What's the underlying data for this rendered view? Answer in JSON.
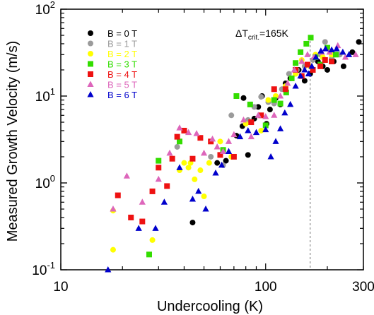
{
  "chart_data": {
    "type": "scatter",
    "xlabel": "Undercooling (K)",
    "ylabel": "Measured Growth Velocity (m/s)",
    "xscale": "log",
    "yscale": "log",
    "xlim": [
      10,
      300
    ],
    "ylim": [
      0.1,
      100
    ],
    "xticks": [
      {
        "value": 10,
        "label": "10"
      },
      {
        "value": 100,
        "label": "100"
      },
      {
        "value": 300,
        "label": "300"
      }
    ],
    "yticks": [
      {
        "value": 0.1,
        "base": "10",
        "exp": "-1"
      },
      {
        "value": 1,
        "base": "10",
        "exp": "0"
      },
      {
        "value": 10,
        "base": "10",
        "exp": "1"
      },
      {
        "value": 100,
        "base": "10",
        "exp": "2"
      }
    ],
    "legend_position": "top-left",
    "annotation": {
      "delta": "ΔT",
      "subscript": "crit.",
      "value": "=165K",
      "x": 165
    },
    "series": [
      {
        "name": "B = 0 T",
        "color": "#000000",
        "marker": "circle",
        "points": [
          [
            44,
            0.35
          ],
          [
            58,
            1.7
          ],
          [
            64,
            1.8
          ],
          [
            72,
            3.5
          ],
          [
            77,
            4.5
          ],
          [
            78,
            9.5
          ],
          [
            82,
            2.1
          ],
          [
            88,
            5.5
          ],
          [
            92,
            7.5
          ],
          [
            96,
            10
          ],
          [
            101,
            4.8
          ],
          [
            105,
            7
          ],
          [
            112,
            9.5
          ],
          [
            118,
            8
          ],
          [
            125,
            14
          ],
          [
            132,
            16
          ],
          [
            145,
            20
          ],
          [
            155,
            15
          ],
          [
            165,
            18
          ],
          [
            180,
            25
          ],
          [
            190,
            22
          ],
          [
            200,
            20
          ],
          [
            215,
            25
          ],
          [
            240,
            22
          ],
          [
            265,
            32
          ],
          [
            285,
            42
          ]
        ]
      },
      {
        "name": "B = 1 T",
        "color": "#9b9b9b",
        "marker": "circle",
        "points": [
          [
            37,
            2.6
          ],
          [
            54,
            2
          ],
          [
            62,
            1.6
          ],
          [
            68,
            6
          ],
          [
            82,
            5.3
          ],
          [
            88,
            7.5
          ],
          [
            95,
            9.8
          ],
          [
            103,
            8.5
          ],
          [
            110,
            8.2
          ],
          [
            120,
            12
          ],
          [
            130,
            18
          ],
          [
            142,
            20
          ],
          [
            155,
            22
          ],
          [
            170,
            26
          ],
          [
            185,
            30
          ],
          [
            195,
            42
          ],
          [
            210,
            27
          ],
          [
            230,
            30
          ]
        ]
      },
      {
        "name": "B = 2 T",
        "color": "#ffff00",
        "marker": "circle",
        "points": [
          [
            18,
            0.17
          ],
          [
            18,
            0.48
          ],
          [
            28,
            0.22
          ],
          [
            38,
            1.4
          ],
          [
            40,
            1.7
          ],
          [
            42,
            1.5
          ],
          [
            43,
            1.7
          ],
          [
            45,
            1.1
          ],
          [
            48,
            1.4
          ],
          [
            50,
            0.7
          ],
          [
            53,
            1.7
          ],
          [
            60,
            3
          ],
          [
            68,
            2
          ],
          [
            80,
            4.8
          ],
          [
            95,
            4
          ],
          [
            103,
            9
          ],
          [
            112,
            10
          ],
          [
            125,
            13
          ],
          [
            140,
            18
          ],
          [
            150,
            26
          ],
          [
            165,
            22
          ],
          [
            175,
            30
          ],
          [
            190,
            28
          ],
          [
            210,
            30
          ]
        ]
      },
      {
        "name": "B = 3 T",
        "color": "#33dd00",
        "marker": "square",
        "points": [
          [
            27,
            0.15
          ],
          [
            30,
            1.8
          ],
          [
            38,
            3
          ],
          [
            62,
            2.4
          ],
          [
            72,
            10
          ],
          [
            84,
            8
          ],
          [
            100,
            4.6
          ],
          [
            110,
            9
          ],
          [
            118,
            8.2
          ],
          [
            126,
            11
          ],
          [
            134,
            16
          ],
          [
            140,
            24
          ],
          [
            148,
            32
          ],
          [
            158,
            40
          ],
          [
            166,
            47
          ],
          [
            175,
            28
          ],
          [
            185,
            23
          ],
          [
            200,
            36
          ],
          [
            220,
            30
          ]
        ]
      },
      {
        "name": "B = 4 T",
        "color": "#ee1111",
        "marker": "square",
        "points": [
          [
            19,
            0.72
          ],
          [
            22,
            0.4
          ],
          [
            25,
            0.36
          ],
          [
            28,
            0.8
          ],
          [
            30,
            1.5
          ],
          [
            33,
            0.92
          ],
          [
            35,
            1.9
          ],
          [
            37,
            3.4
          ],
          [
            40,
            4
          ],
          [
            44,
            1.9
          ],
          [
            48,
            3.3
          ],
          [
            54,
            3
          ],
          [
            60,
            2.1
          ],
          [
            70,
            2
          ],
          [
            85,
            5
          ],
          [
            95,
            6
          ],
          [
            110,
            12
          ],
          [
            125,
            12
          ],
          [
            140,
            20
          ],
          [
            150,
            17
          ],
          [
            160,
            23
          ],
          [
            170,
            20
          ],
          [
            185,
            22
          ],
          [
            195,
            26
          ],
          [
            210,
            25
          ]
        ]
      },
      {
        "name": "B = 5 T",
        "color": "#dd66bb",
        "marker": "triangle",
        "points": [
          [
            18,
            0.5
          ],
          [
            21,
            1.2
          ],
          [
            25,
            0.6
          ],
          [
            30,
            1.1
          ],
          [
            34,
            2.2
          ],
          [
            38,
            4.3
          ],
          [
            42,
            3.8
          ],
          [
            46,
            3.7
          ],
          [
            50,
            2.2
          ],
          [
            55,
            3.2
          ],
          [
            58,
            2.6
          ],
          [
            62,
            2.3
          ],
          [
            66,
            3
          ],
          [
            70,
            3.6
          ],
          [
            78,
            5.3
          ],
          [
            85,
            3.4
          ],
          [
            92,
            6
          ],
          [
            100,
            5.8
          ],
          [
            110,
            6
          ],
          [
            118,
            10
          ],
          [
            128,
            14
          ],
          [
            138,
            20
          ],
          [
            150,
            25
          ],
          [
            160,
            30
          ],
          [
            172,
            28
          ],
          [
            188,
            32
          ],
          [
            205,
            32
          ],
          [
            225,
            38
          ],
          [
            245,
            28
          ],
          [
            275,
            30
          ]
        ]
      },
      {
        "name": "B = 6 T",
        "color": "#0000cc",
        "marker": "triangle",
        "points": [
          [
            17,
            0.1
          ],
          [
            24,
            0.3
          ],
          [
            29,
            0.3
          ],
          [
            32,
            0.6
          ],
          [
            38,
            1.5
          ],
          [
            44,
            0.65
          ],
          [
            47,
            0.8
          ],
          [
            51,
            0.5
          ],
          [
            57,
            1.3
          ],
          [
            61,
            1.6
          ],
          [
            66,
            2.3
          ],
          [
            75,
            3.4
          ],
          [
            82,
            4
          ],
          [
            90,
            3.8
          ],
          [
            100,
            4.1
          ],
          [
            106,
            2
          ],
          [
            112,
            3
          ],
          [
            118,
            4.2
          ],
          [
            124,
            6.4
          ],
          [
            132,
            8
          ],
          [
            140,
            13
          ],
          [
            148,
            17
          ],
          [
            155,
            20
          ],
          [
            162,
            18
          ],
          [
            168,
            22
          ],
          [
            176,
            28
          ],
          [
            186,
            33
          ],
          [
            196,
            35
          ],
          [
            210,
            34
          ],
          [
            222,
            35
          ],
          [
            238,
            32
          ],
          [
            255,
            30
          ]
        ]
      }
    ]
  }
}
